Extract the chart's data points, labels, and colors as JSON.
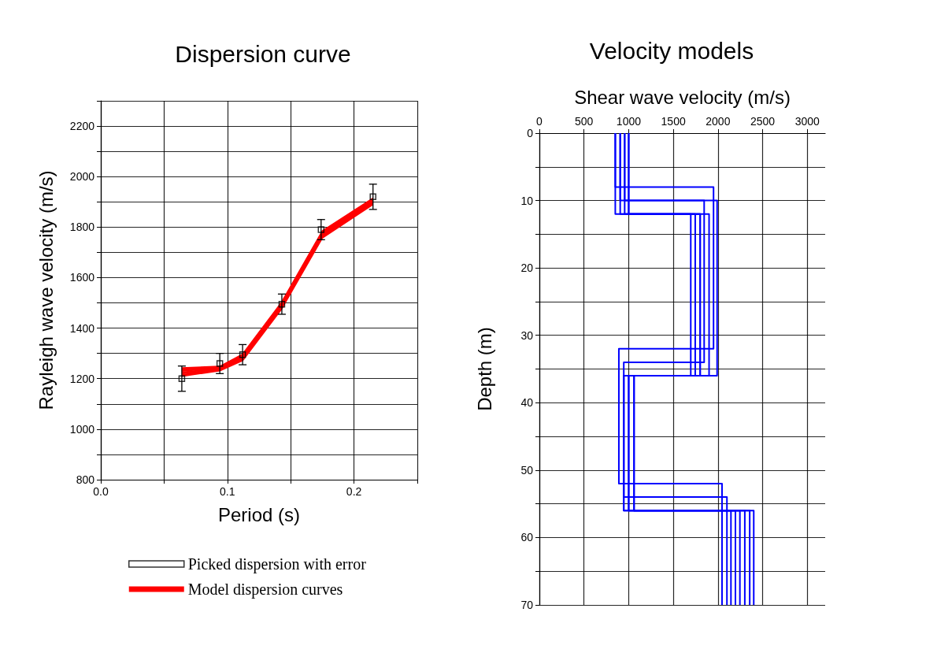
{
  "chart_data": [
    {
      "type": "line",
      "title": "Dispersion curve",
      "xlabel": "Period (s)",
      "ylabel": "Rayleigh wave velocity (m/s)",
      "xlim": [
        0,
        0.25
      ],
      "xticks": [
        {
          "value": 0,
          "label": "0.0"
        },
        {
          "value": 0.05,
          "label": null
        },
        {
          "value": 0.1,
          "label": "0.1"
        },
        {
          "value": 0.15,
          "label": null
        },
        {
          "value": 0.2,
          "label": "0.2"
        },
        {
          "value": 0.25,
          "label": null
        }
      ],
      "ylim": [
        800,
        2300
      ],
      "yticks": [
        800,
        {
          "value": 900,
          "label": null
        },
        1000,
        {
          "value": 1100,
          "label": null
        },
        1200,
        {
          "value": 1300,
          "label": null
        },
        1400,
        {
          "value": 1500,
          "label": null
        },
        1600,
        {
          "value": 1700,
          "label": null
        },
        1800,
        {
          "value": 1900,
          "label": null
        },
        2000,
        {
          "value": 2100,
          "label": null
        },
        2200,
        {
          "value": 2300,
          "label": null
        }
      ],
      "grid": true,
      "legend": "bottom",
      "series": [
        {
          "type": "scatter",
          "name": "Picked dispersion with error",
          "color": "#000000",
          "marker": "square",
          "x": [
            0.064,
            0.094,
            0.112,
            0.143,
            0.174,
            0.215
          ],
          "values": [
            1200,
            1260,
            1295,
            1495,
            1790,
            1920
          ],
          "errors": [
            50,
            40,
            40,
            40,
            40,
            50
          ]
        },
        {
          "name": "Model dispersion curves",
          "color": "#ff0000",
          "x": [
            0.064,
            0.094,
            0.112,
            0.143,
            0.175,
            0.215
          ],
          "values": [
            1210,
            1232,
            1272,
            1478,
            1758,
            1890
          ]
        },
        {
          "color": "#ff0000",
          "x": [
            0.064,
            0.094,
            0.112,
            0.143,
            0.175,
            0.215
          ],
          "values": [
            1215,
            1235,
            1276,
            1483,
            1763,
            1895
          ]
        },
        {
          "color": "#ff0000",
          "x": [
            0.064,
            0.094,
            0.112,
            0.143,
            0.175,
            0.215
          ],
          "values": [
            1220,
            1237,
            1280,
            1488,
            1768,
            1898
          ]
        },
        {
          "color": "#ff0000",
          "x": [
            0.064,
            0.094,
            0.112,
            0.143,
            0.175,
            0.215
          ],
          "values": [
            1225,
            1240,
            1284,
            1492,
            1772,
            1902
          ]
        },
        {
          "color": "#ff0000",
          "x": [
            0.064,
            0.094,
            0.112,
            0.143,
            0.175,
            0.215
          ],
          "values": [
            1230,
            1242,
            1287,
            1495,
            1775,
            1905
          ]
        },
        {
          "color": "#ff0000",
          "x": [
            0.064,
            0.094,
            0.112,
            0.143,
            0.175,
            0.215
          ],
          "values": [
            1235,
            1244,
            1290,
            1498,
            1778,
            1908
          ]
        },
        {
          "color": "#ff0000",
          "x": [
            0.064,
            0.094,
            0.112,
            0.143,
            0.175,
            0.215
          ],
          "values": [
            1238,
            1246,
            1293,
            1500,
            1781,
            1911
          ]
        },
        {
          "color": "#ff0000",
          "x": [
            0.064,
            0.094,
            0.112,
            0.143,
            0.175,
            0.215
          ],
          "values": [
            1242,
            1248,
            1296,
            1503,
            1784,
            1914
          ]
        }
      ]
    },
    {
      "type": "line",
      "title": "Velocity models",
      "xlabel": "Shear wave velocity (m/s)",
      "ylabel": "Depth (m)",
      "xlim": [
        0,
        3200
      ],
      "xticks": [
        0,
        500,
        1000,
        1500,
        2000,
        2500,
        3000
      ],
      "ylim": [
        70,
        0
      ],
      "yticks": [
        0,
        {
          "value": 5,
          "label": null
        },
        10,
        {
          "value": 15,
          "label": null
        },
        20,
        {
          "value": 25,
          "label": null
        },
        30,
        {
          "value": 35,
          "label": null
        },
        40,
        {
          "value": 45,
          "label": null
        },
        50,
        {
          "value": 55,
          "label": null
        },
        60,
        {
          "value": 65,
          "label": null
        },
        70
      ],
      "grid": true,
      "series": [
        {
          "color": "#0000ff",
          "x": [
            850,
            850,
            1950,
            1950,
            890,
            890,
            2045,
            2045
          ],
          "values": [
            0,
            8,
            8,
            32,
            32,
            52,
            52,
            70
          ]
        },
        {
          "color": "#0000ff",
          "x": [
            905,
            905,
            1845,
            1845,
            945,
            945,
            2100,
            2100
          ],
          "values": [
            0,
            10,
            10,
            34,
            34,
            54,
            54,
            70
          ]
        },
        {
          "color": "#0000ff",
          "x": [
            955,
            955,
            1695,
            1695,
            1000,
            1000,
            2145,
            2145
          ],
          "values": [
            0,
            12,
            12,
            36,
            36,
            56,
            56,
            70
          ]
        },
        {
          "color": "#0000ff",
          "x": [
            1000,
            1000,
            1745,
            1745,
            1060,
            1060,
            2195,
            2195
          ],
          "values": [
            0,
            12,
            12,
            36,
            36,
            56,
            56,
            70
          ]
        },
        {
          "color": "#0000ff",
          "x": [
            850,
            850,
            1800,
            1800,
            945,
            945,
            2245,
            2245
          ],
          "values": [
            0,
            12,
            12,
            36,
            36,
            56,
            56,
            70
          ]
        },
        {
          "color": "#0000ff",
          "x": [
            905,
            905,
            1900,
            1900,
            1000,
            1000,
            2300,
            2300
          ],
          "values": [
            0,
            12,
            12,
            36,
            36,
            56,
            56,
            70
          ]
        },
        {
          "color": "#0000ff",
          "x": [
            955,
            955,
            1990,
            1990,
            1060,
            1060,
            2355,
            2355
          ],
          "values": [
            0,
            10,
            10,
            36,
            36,
            56,
            56,
            70
          ]
        },
        {
          "color": "#0000ff",
          "x": [
            1000,
            1000,
            1800,
            1800,
            945,
            945,
            2400,
            2400
          ],
          "values": [
            0,
            12,
            12,
            36,
            36,
            56,
            56,
            70
          ]
        }
      ]
    }
  ]
}
